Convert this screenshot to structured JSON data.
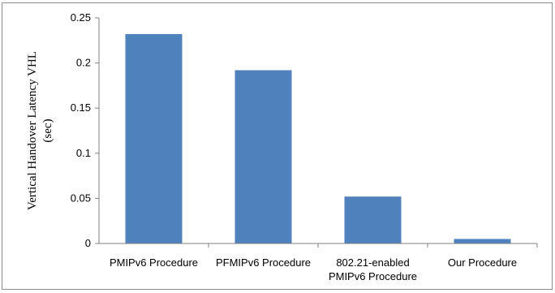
{
  "chart_data": {
    "type": "bar",
    "categories": [
      [
        "PMIPv6 Procedure"
      ],
      [
        "PFMIPv6 Procedure"
      ],
      [
        "802.21-enabled",
        "PMIPv6 Procedure"
      ],
      [
        "Our Procedure"
      ]
    ],
    "values": [
      0.232,
      0.192,
      0.052,
      0.005
    ],
    "ylabel_lines": [
      "Vertical Handover Latency VHL",
      "(sec)"
    ],
    "yticks": [
      "0",
      "0.05",
      "0.1",
      "0.15",
      "0.2",
      "0.25"
    ],
    "ylim": [
      0,
      0.25
    ],
    "grid": false,
    "legend": "none",
    "bar_color": "#4f81bd"
  }
}
